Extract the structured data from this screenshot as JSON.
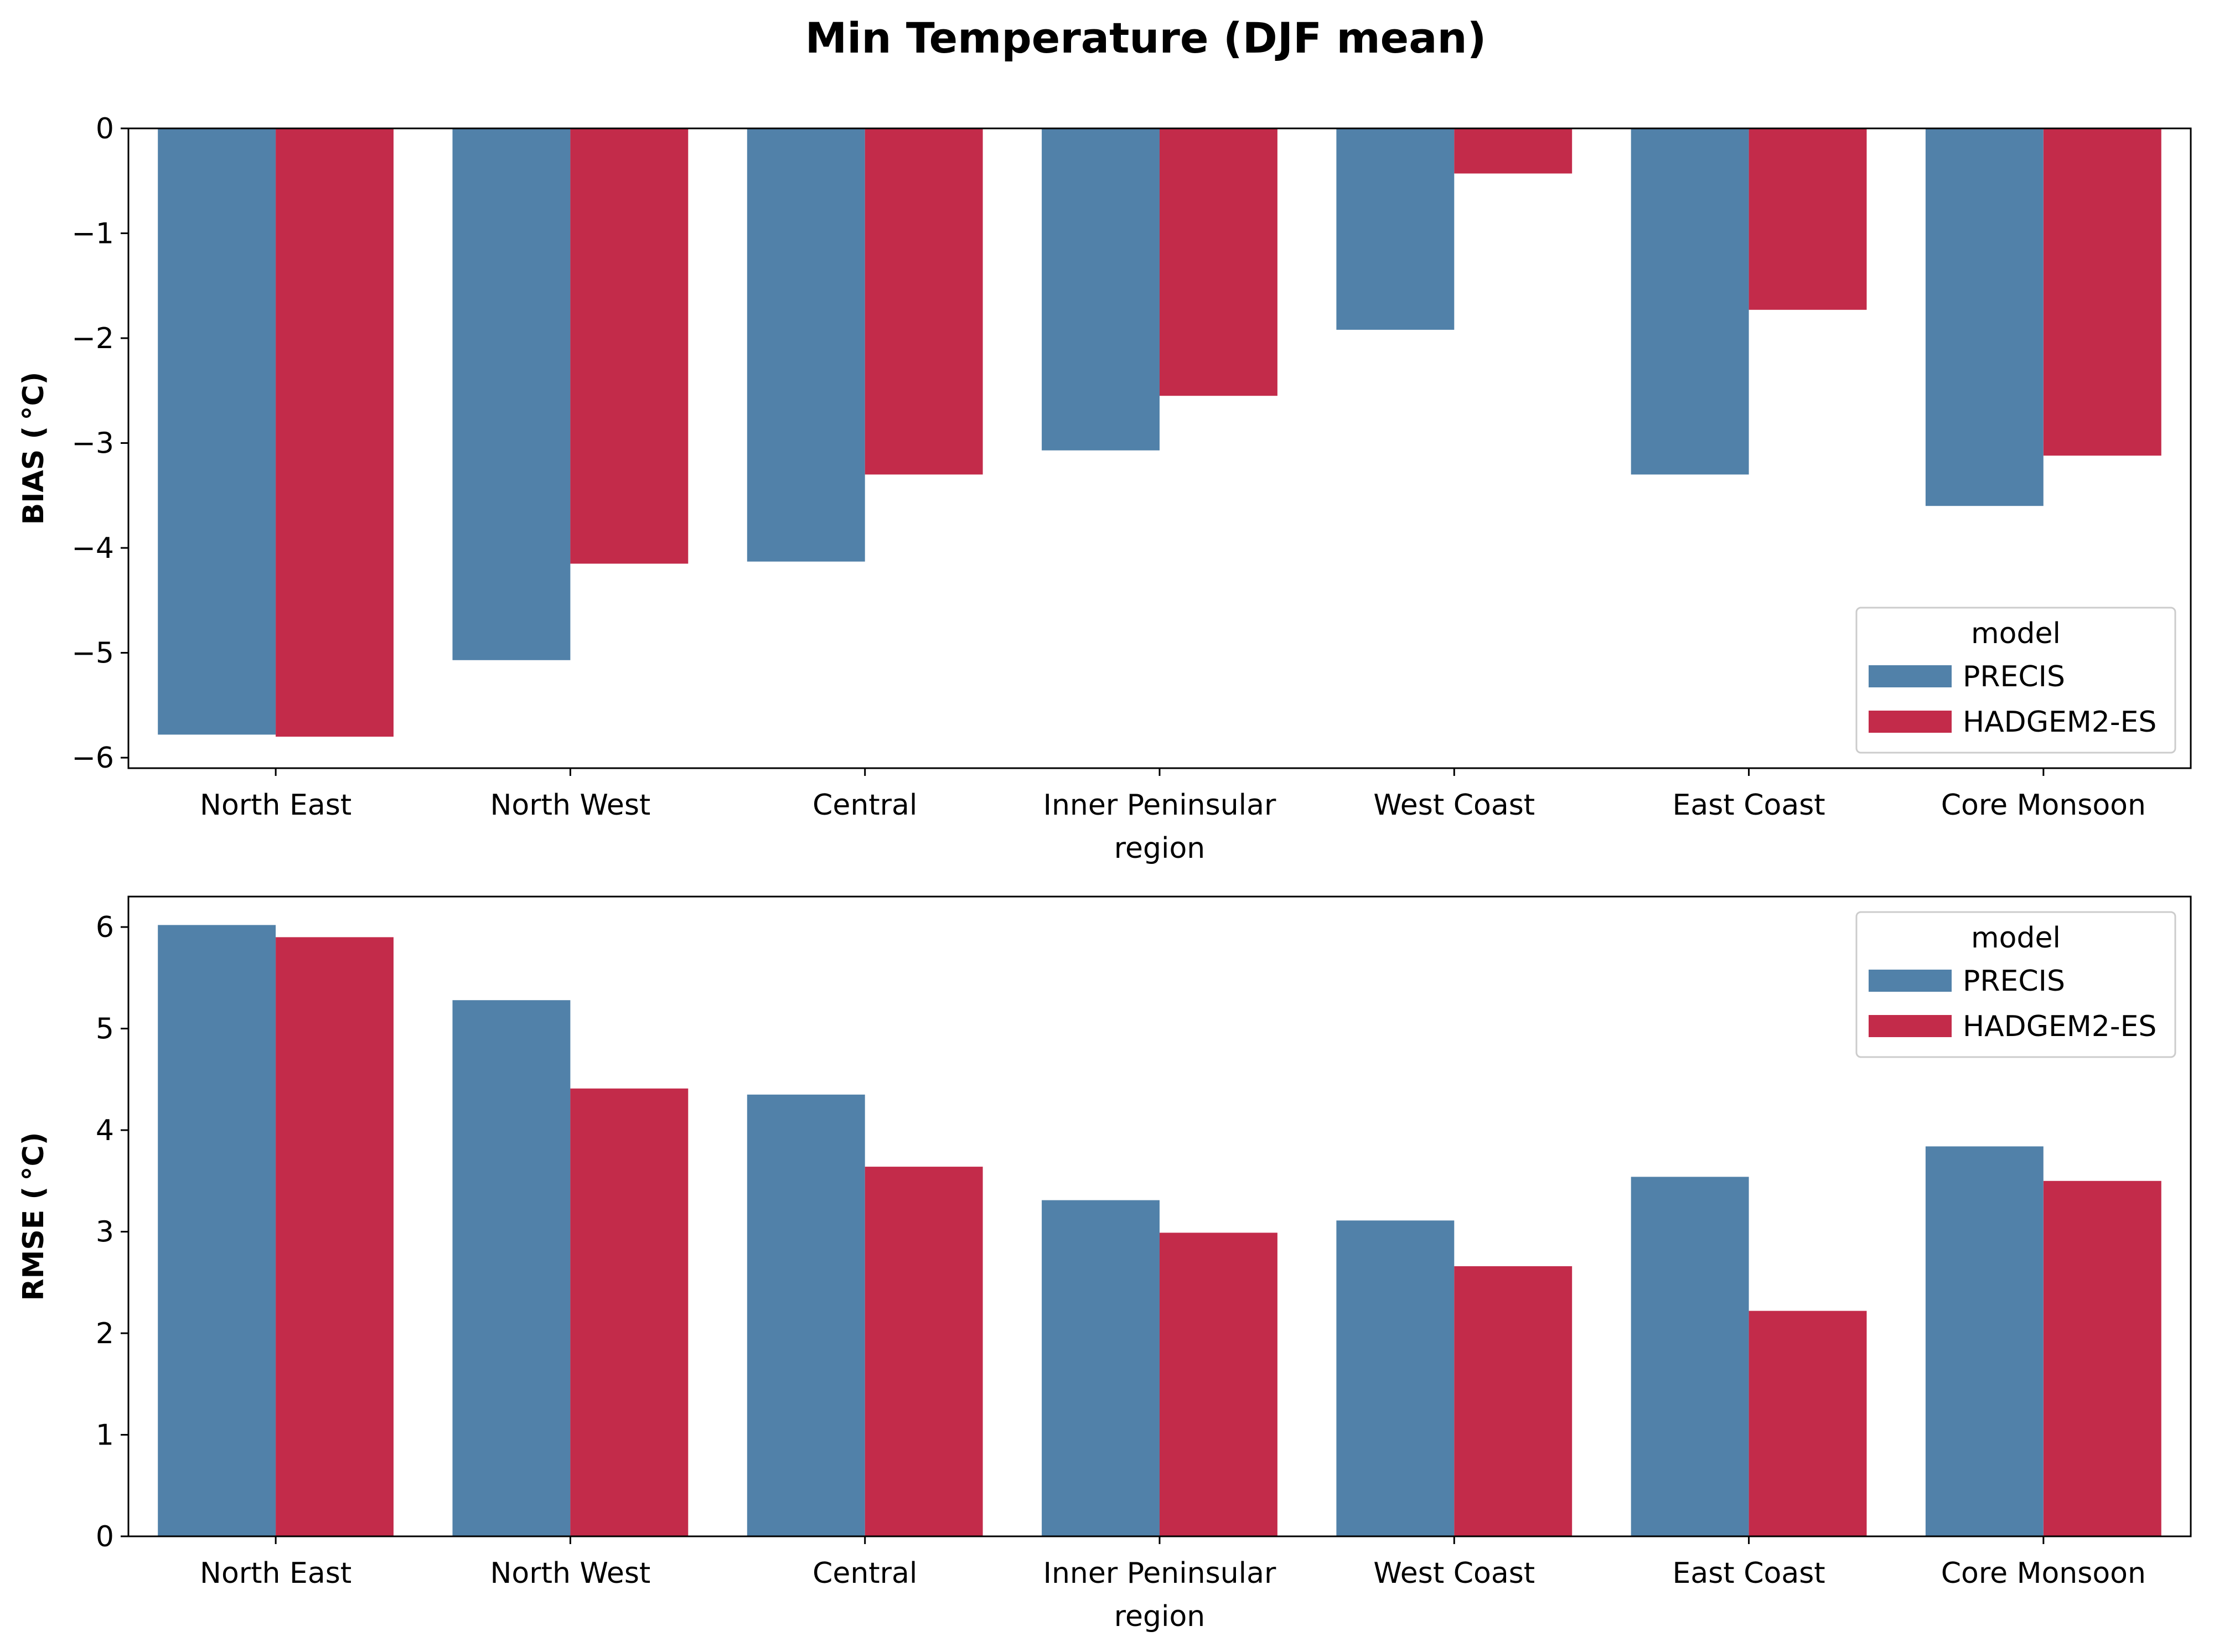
{
  "chart_data": {
    "type": "bar",
    "title": "Min Temperature (DJF mean)",
    "colors": {
      "PRECIS": "#5181a9",
      "HADGEM2-ES": "#c32b4a"
    },
    "panels": [
      {
        "ylabel": "BIAS ($^\\circ$C)",
        "ylabel_text": "BIAS ( °C)",
        "xlabel": "region",
        "ylim": [
          -6.1,
          0
        ],
        "yticks": [
          0,
          -1,
          -2,
          -3,
          -4,
          -5,
          -6
        ],
        "ytick_labels": [
          "0",
          "−1",
          "−2",
          "−3",
          "−4",
          "−5",
          "−6"
        ],
        "categories": [
          "North East",
          "North West",
          "Central",
          "Inner Peninsular",
          "West Coast",
          "East Coast",
          "Core Monsoon"
        ],
        "legend": {
          "title": "model",
          "placement": "lower right"
        },
        "series": [
          {
            "name": "PRECIS",
            "values": [
              -5.78,
              -5.07,
              -4.13,
              -3.07,
              -1.92,
              -3.3,
              -3.6
            ]
          },
          {
            "name": "HADGEM2-ES",
            "values": [
              -5.8,
              -4.15,
              -3.3,
              -2.55,
              -0.43,
              -1.73,
              -3.12
            ]
          }
        ]
      },
      {
        "ylabel": "RMSE ($^\\circ$C)",
        "ylabel_text": "RMSE ( °C)",
        "xlabel": "region",
        "ylim": [
          0,
          6.3
        ],
        "yticks": [
          0,
          1,
          2,
          3,
          4,
          5,
          6
        ],
        "ytick_labels": [
          "0",
          "1",
          "2",
          "3",
          "4",
          "5",
          "6"
        ],
        "categories": [
          "North East",
          "North West",
          "Central",
          "Inner Peninsular",
          "West Coast",
          "East Coast",
          "Core Monsoon"
        ],
        "legend": {
          "title": "model",
          "placement": "upper right"
        },
        "series": [
          {
            "name": "PRECIS",
            "values": [
              6.02,
              5.28,
              4.35,
              3.31,
              3.11,
              3.54,
              3.84
            ]
          },
          {
            "name": "HADGEM2-ES",
            "values": [
              5.9,
              4.41,
              3.64,
              2.99,
              2.66,
              2.22,
              3.5
            ]
          }
        ]
      }
    ]
  }
}
